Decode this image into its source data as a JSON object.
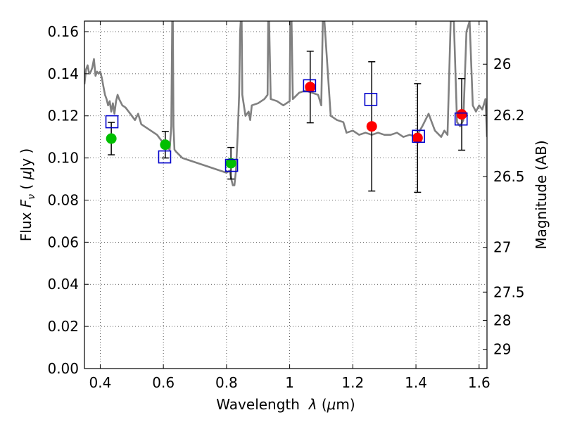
{
  "chart_data": {
    "type": "scatter",
    "xlabel": "Wavelength  λ (μm)",
    "ylabel": "Flux  F_ν  ( μJy )",
    "ylabel_parts": {
      "pre": "Flux ",
      "fsym": "F",
      "fsub": "ν",
      "mid": " ( ",
      "mu": "μ",
      "unit": "Jy )"
    },
    "y2label": "Magnitude (AB)",
    "xlim": [
      0.35,
      1.625
    ],
    "ylim": [
      0.0,
      0.165
    ],
    "x_ticks": [
      0.4,
      0.6,
      0.8,
      1.0,
      1.2,
      1.4,
      1.6
    ],
    "x_tick_labels": [
      "0.4",
      "0.6",
      "0.8",
      "1",
      "1.2",
      "1.4",
      "1.6"
    ],
    "y_ticks": [
      0.0,
      0.02,
      0.04,
      0.06,
      0.08,
      0.1,
      0.12,
      0.14,
      0.16
    ],
    "y_tick_labels": [
      "0.00",
      "0.02",
      "0.04",
      "0.06",
      "0.08",
      "0.10",
      "0.12",
      "0.14",
      "0.16"
    ],
    "mag_ticks": [
      26,
      26.2,
      26.5,
      27,
      27.5,
      28,
      29
    ],
    "mag_tick_labels": [
      "26",
      "26.2",
      "26.5",
      "27",
      "27.5",
      "28",
      "29"
    ],
    "grid": true,
    "colors": {
      "spectrum": "#808080",
      "observed_ground": "#00bf00",
      "observed_space": "#ff0000",
      "model": "#0000cc",
      "errorbar": "#000000"
    },
    "series": [
      {
        "kind": "line",
        "x": [
          0.35,
          0.355,
          0.36,
          0.365,
          0.37,
          0.375,
          0.38,
          0.385,
          0.39,
          0.395,
          0.4,
          0.405,
          0.41,
          0.415,
          0.42,
          0.425,
          0.43,
          0.435,
          0.44,
          0.445,
          0.45,
          0.455,
          0.46,
          0.47,
          0.48,
          0.49,
          0.5,
          0.51,
          0.52,
          0.53,
          0.54,
          0.55,
          0.56,
          0.57,
          0.58,
          0.59,
          0.6,
          0.61,
          0.62,
          0.625,
          0.628,
          0.63,
          0.632,
          0.635,
          0.64,
          0.66,
          0.68,
          0.7,
          0.72,
          0.74,
          0.76,
          0.78,
          0.8,
          0.81,
          0.815,
          0.82,
          0.825,
          0.83,
          0.835,
          0.84,
          0.843,
          0.845,
          0.848,
          0.85,
          0.86,
          0.87,
          0.875,
          0.88,
          0.9,
          0.92,
          0.93,
          0.932,
          0.935,
          0.94,
          0.96,
          0.98,
          1.0,
          1.002,
          1.006,
          1.01,
          1.03,
          1.05,
          1.07,
          1.09,
          1.1,
          1.105,
          1.11,
          1.13,
          1.15,
          1.17,
          1.18,
          1.2,
          1.22,
          1.24,
          1.26,
          1.28,
          1.3,
          1.32,
          1.34,
          1.36,
          1.38,
          1.4,
          1.42,
          1.44,
          1.46,
          1.48,
          1.49,
          1.5,
          1.51,
          1.52,
          1.53,
          1.54,
          1.55,
          1.56,
          1.57,
          1.58,
          1.59,
          1.6,
          1.61,
          1.62,
          1.625
        ],
        "y": [
          0.135,
          0.142,
          0.144,
          0.14,
          0.141,
          0.143,
          0.147,
          0.139,
          0.141,
          0.14,
          0.141,
          0.138,
          0.134,
          0.13,
          0.128,
          0.125,
          0.127,
          0.122,
          0.126,
          0.121,
          0.127,
          0.13,
          0.128,
          0.125,
          0.124,
          0.122,
          0.12,
          0.118,
          0.121,
          0.116,
          0.115,
          0.114,
          0.113,
          0.112,
          0.111,
          0.109,
          0.107,
          0.105,
          0.104,
          0.115,
          0.165,
          0.165,
          0.115,
          0.104,
          0.103,
          0.1,
          0.099,
          0.098,
          0.097,
          0.096,
          0.095,
          0.094,
          0.093,
          0.094,
          0.09,
          0.087,
          0.087,
          0.094,
          0.11,
          0.13,
          0.16,
          0.165,
          0.165,
          0.13,
          0.12,
          0.122,
          0.118,
          0.125,
          0.126,
          0.128,
          0.13,
          0.165,
          0.165,
          0.128,
          0.127,
          0.125,
          0.127,
          0.165,
          0.165,
          0.128,
          0.131,
          0.132,
          0.131,
          0.13,
          0.125,
          0.165,
          0.165,
          0.12,
          0.118,
          0.117,
          0.112,
          0.113,
          0.111,
          0.112,
          0.111,
          0.112,
          0.111,
          0.111,
          0.112,
          0.11,
          0.111,
          0.11,
          0.115,
          0.121,
          0.113,
          0.11,
          0.113,
          0.111,
          0.165,
          0.165,
          0.117,
          0.115,
          0.118,
          0.16,
          0.165,
          0.125,
          0.122,
          0.125,
          0.123,
          0.128,
          0.11
        ]
      },
      {
        "kind": "observed-ground",
        "points": [
          {
            "x": 0.435,
            "y": 0.1092,
            "yerr": 0.0077
          },
          {
            "x": 0.606,
            "y": 0.1063,
            "yerr": 0.0063
          },
          {
            "x": 0.814,
            "y": 0.0975,
            "yerr": 0.0075
          }
        ]
      },
      {
        "kind": "observed-space",
        "points": [
          {
            "x": 1.065,
            "y": 0.1337,
            "yerr": 0.017
          },
          {
            "x": 1.26,
            "y": 0.115,
            "yerr": 0.0307
          },
          {
            "x": 1.405,
            "y": 0.1095,
            "yerr": 0.0258
          },
          {
            "x": 1.545,
            "y": 0.1207,
            "yerr": 0.017
          }
        ]
      },
      {
        "kind": "model-photometry",
        "points": [
          {
            "x": 0.437,
            "y": 0.1172
          },
          {
            "x": 0.604,
            "y": 0.1005
          },
          {
            "x": 0.816,
            "y": 0.0965
          },
          {
            "x": 1.063,
            "y": 0.1343
          },
          {
            "x": 1.257,
            "y": 0.1278
          },
          {
            "x": 1.408,
            "y": 0.1103
          },
          {
            "x": 1.543,
            "y": 0.1185
          }
        ]
      }
    ]
  }
}
